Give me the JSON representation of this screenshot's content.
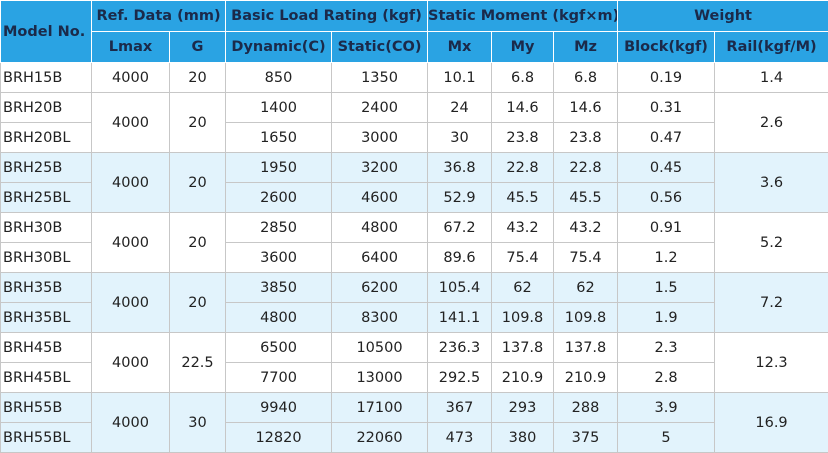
{
  "header": {
    "model": "Model No.",
    "ref": "Ref. Data (mm)",
    "basic": "Basic Load Rating (kgf)",
    "static_moment": "Static Moment (kgf×m)",
    "weight": "Weight",
    "lmax": "Lmax",
    "g": "G",
    "dynamic": "Dynamic(C)",
    "static": "Static(CO)",
    "mx": "Mx",
    "my": "My",
    "mz": "Mz",
    "block": "Block(kgf)",
    "rail": "Rail(kgf/M)"
  },
  "groups": [
    {
      "lmax": "4000",
      "g": "20",
      "rail": "1.4",
      "alt": false,
      "rows": [
        {
          "model": "BRH15B",
          "dynamic": "850",
          "static": "1350",
          "mx": "10.1",
          "my": "6.8",
          "mz": "6.8",
          "block": "0.19"
        }
      ]
    },
    {
      "lmax": "4000",
      "g": "20",
      "rail": "2.6",
      "alt": false,
      "rows": [
        {
          "model": "BRH20B",
          "dynamic": "1400",
          "static": "2400",
          "mx": "24",
          "my": "14.6",
          "mz": "14.6",
          "block": "0.31"
        },
        {
          "model": "BRH20BL",
          "dynamic": "1650",
          "static": "3000",
          "mx": "30",
          "my": "23.8",
          "mz": "23.8",
          "block": "0.47"
        }
      ]
    },
    {
      "lmax": "4000",
      "g": "20",
      "rail": "3.6",
      "alt": true,
      "rows": [
        {
          "model": "BRH25B",
          "dynamic": "1950",
          "static": "3200",
          "mx": "36.8",
          "my": "22.8",
          "mz": "22.8",
          "block": "0.45"
        },
        {
          "model": "BRH25BL",
          "dynamic": "2600",
          "static": "4600",
          "mx": "52.9",
          "my": "45.5",
          "mz": "45.5",
          "block": "0.56"
        }
      ]
    },
    {
      "lmax": "4000",
      "g": "20",
      "rail": "5.2",
      "alt": false,
      "rows": [
        {
          "model": "BRH30B",
          "dynamic": "2850",
          "static": "4800",
          "mx": "67.2",
          "my": "43.2",
          "mz": "43.2",
          "block": "0.91"
        },
        {
          "model": "BRH30BL",
          "dynamic": "3600",
          "static": "6400",
          "mx": "89.6",
          "my": "75.4",
          "mz": "75.4",
          "block": "1.2"
        }
      ]
    },
    {
      "lmax": "4000",
      "g": "20",
      "rail": "7.2",
      "alt": true,
      "rows": [
        {
          "model": "BRH35B",
          "dynamic": "3850",
          "static": "6200",
          "mx": "105.4",
          "my": "62",
          "mz": "62",
          "block": "1.5"
        },
        {
          "model": "BRH35BL",
          "dynamic": "4800",
          "static": "8300",
          "mx": "141.1",
          "my": "109.8",
          "mz": "109.8",
          "block": "1.9"
        }
      ]
    },
    {
      "lmax": "4000",
      "g": "22.5",
      "rail": "12.3",
      "alt": false,
      "rows": [
        {
          "model": "BRH45B",
          "dynamic": "6500",
          "static": "10500",
          "mx": "236.3",
          "my": "137.8",
          "mz": "137.8",
          "block": "2.3"
        },
        {
          "model": "BRH45BL",
          "dynamic": "7700",
          "static": "13000",
          "mx": "292.5",
          "my": "210.9",
          "mz": "210.9",
          "block": "2.8"
        }
      ]
    },
    {
      "lmax": "4000",
      "g": "30",
      "rail": "16.9",
      "alt": true,
      "rows": [
        {
          "model": "BRH55B",
          "dynamic": "9940",
          "static": "17100",
          "mx": "367",
          "my": "293",
          "mz": "288",
          "block": "3.9"
        },
        {
          "model": "BRH55BL",
          "dynamic": "12820",
          "static": "22060",
          "mx": "473",
          "my": "380",
          "mz": "375",
          "block": "5"
        }
      ]
    }
  ]
}
